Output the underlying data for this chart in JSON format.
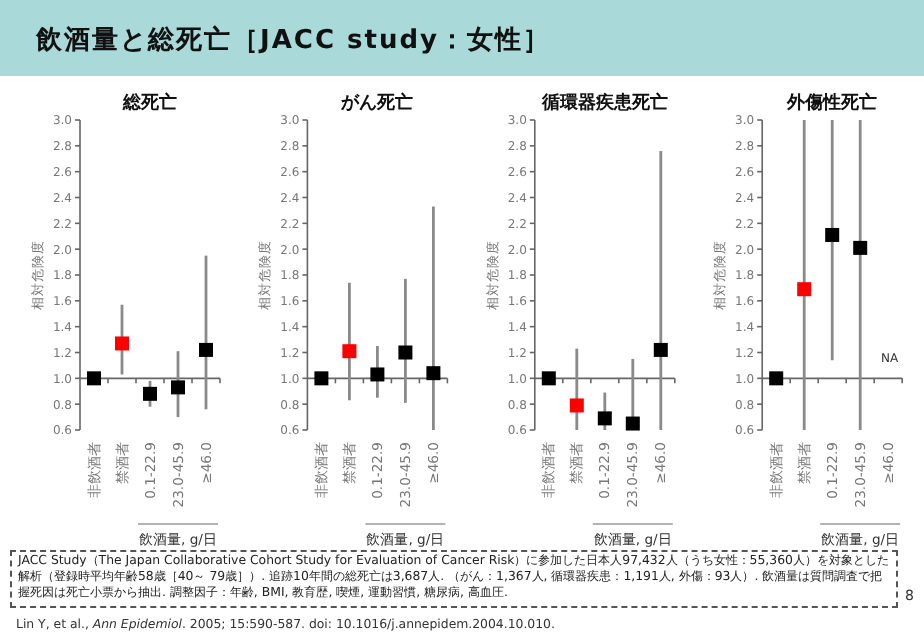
{
  "chart_data": [
    {
      "type": "other",
      "title": "飲酒量と総死亡［JACC study：女性］",
      "annotations": [
        "JACC Study（The Japan Collaborative Cohort Study for Evaluation of Cancer Risk）に参加した日本人97,432人（うち女性：55,360人）を対象とした解析（登録時平均年齢58歳［40～ 79歳］）. 追跡10年間の総死亡は3,687人. （がん：1,367人, 循環器疾患：1,191人, 外傷：93人）. 飲酒量は質問調査で把握死因は死亡小票から抽出. 調整因子：年齢, BMI, 教育歴, 喫煙, 運動習慣, 糖尿病, 高血圧.",
        "Lin Y, et al., *Ann Epidemiol*. 2005; 15:590-587. doi: 10.1016/j.annepidem.2004.10.010.",
        "8"
      ]
    },
    {
      "type": "scatter",
      "title": "総死亡",
      "xlabel": "飲酒量, g/日",
      "ylabel": "相対危険度",
      "categories": [
        "非飲酒者",
        "禁酒者",
        "0.1-22.9",
        "23.0-45.9",
        "≥46.0"
      ],
      "ylim": [
        0.6,
        3.0
      ],
      "yticks": [
        0.6,
        0.8,
        {
          "value": 1,
          "label": "1.0"
        },
        1.2,
        1.4,
        1.6,
        1.8,
        {
          "value": 2,
          "label": "2.0"
        },
        2.2,
        2.4,
        2.6,
        2.8,
        {
          "value": 3,
          "label": "3.0"
        }
      ],
      "marker": "square",
      "ref_lines": [
        {
          "axis": "y",
          "value": 1
        }
      ],
      "series": [
        {
          "values": [
            1.0,
            1.27,
            0.88,
            0.93,
            1.22
          ],
          "colors": [
            "#000000",
            "#ff0000",
            "#000000",
            "#000000",
            "#000000"
          ],
          "errors": [
            null,
            [
              1.03,
              1.57
            ],
            [
              0.78,
              0.98
            ],
            [
              0.7,
              1.21
            ],
            [
              0.76,
              1.95
            ]
          ]
        }
      ]
    },
    {
      "type": "scatter",
      "title": "がん死亡",
      "xlabel": "飲酒量, g/日",
      "ylabel": "相対危険度",
      "categories": [
        "非飲酒者",
        "禁酒者",
        "0.1-22.9",
        "23.0-45.9",
        "≥46.0"
      ],
      "ylim": [
        0.6,
        3.0
      ],
      "yticks": [
        0.6,
        0.8,
        {
          "value": 1,
          "label": "1.0"
        },
        1.2,
        1.4,
        1.6,
        1.8,
        {
          "value": 2,
          "label": "2.0"
        },
        2.2,
        2.4,
        2.6,
        2.8,
        {
          "value": 3,
          "label": "3.0"
        }
      ],
      "marker": "square",
      "ref_lines": [
        {
          "axis": "y",
          "value": 1
        }
      ],
      "series": [
        {
          "values": [
            1.0,
            1.21,
            1.03,
            1.2,
            1.04
          ],
          "colors": [
            "#000000",
            "#ff0000",
            "#000000",
            "#000000",
            "#000000"
          ],
          "errors": [
            null,
            [
              0.83,
              1.74
            ],
            [
              0.85,
              1.25
            ],
            [
              0.81,
              1.77
            ],
            [
              0.6,
              2.33
            ]
          ]
        }
      ]
    },
    {
      "type": "scatter",
      "title": "循環器疾患死亡",
      "xlabel": "飲酒量, g/日",
      "ylabel": "相対危険度",
      "categories": [
        "非飲酒者",
        "禁酒者",
        "0.1-22.9",
        "23.0-45.9",
        "≥46.0"
      ],
      "ylim": [
        0.6,
        3.0
      ],
      "yticks": [
        0.6,
        0.8,
        {
          "value": 1,
          "label": "1.0"
        },
        1.2,
        1.4,
        1.6,
        1.8,
        {
          "value": 2,
          "label": "2.0"
        },
        2.2,
        2.4,
        2.6,
        2.8,
        {
          "value": 3,
          "label": "3.0"
        }
      ],
      "marker": "square",
      "ref_lines": [
        {
          "axis": "y",
          "value": 1
        }
      ],
      "series": [
        {
          "values": [
            1.0,
            0.79,
            0.69,
            0.65,
            1.22
          ],
          "colors": [
            "#000000",
            "#ff0000",
            "#000000",
            "#000000",
            "#000000"
          ],
          "errors": [
            null,
            [
              0.6,
              1.23
            ],
            [
              0.6,
              0.89
            ],
            [
              0.6,
              1.15
            ],
            [
              0.6,
              2.76
            ]
          ]
        }
      ]
    },
    {
      "type": "scatter",
      "title": "外傷性死亡",
      "xlabel": "飲酒量, g/日",
      "ylabel": "相対危険度",
      "categories": [
        "非飲酒者",
        "禁酒者",
        "0.1-22.9",
        "23.0-45.9",
        "≥46.0"
      ],
      "ylim": [
        0.6,
        3.0
      ],
      "yticks": [
        0.6,
        0.8,
        {
          "value": 1,
          "label": "1.0"
        },
        1.2,
        1.4,
        1.6,
        1.8,
        {
          "value": 2,
          "label": "2.0"
        },
        2.2,
        2.4,
        2.6,
        2.8,
        {
          "value": 3,
          "label": "3.0"
        }
      ],
      "marker": "square",
      "ref_lines": [
        {
          "axis": "y",
          "value": 1
        }
      ],
      "annotations": [
        "NA"
      ],
      "series": [
        {
          "values": [
            1.0,
            1.69,
            2.11,
            2.01,
            null
          ],
          "colors": [
            "#000000",
            "#ff0000",
            "#000000",
            "#000000",
            null
          ],
          "errors": [
            null,
            [
              0.6,
              3.0
            ],
            [
              1.14,
              3.0
            ],
            [
              0.6,
              3.0
            ],
            null
          ]
        }
      ]
    }
  ]
}
